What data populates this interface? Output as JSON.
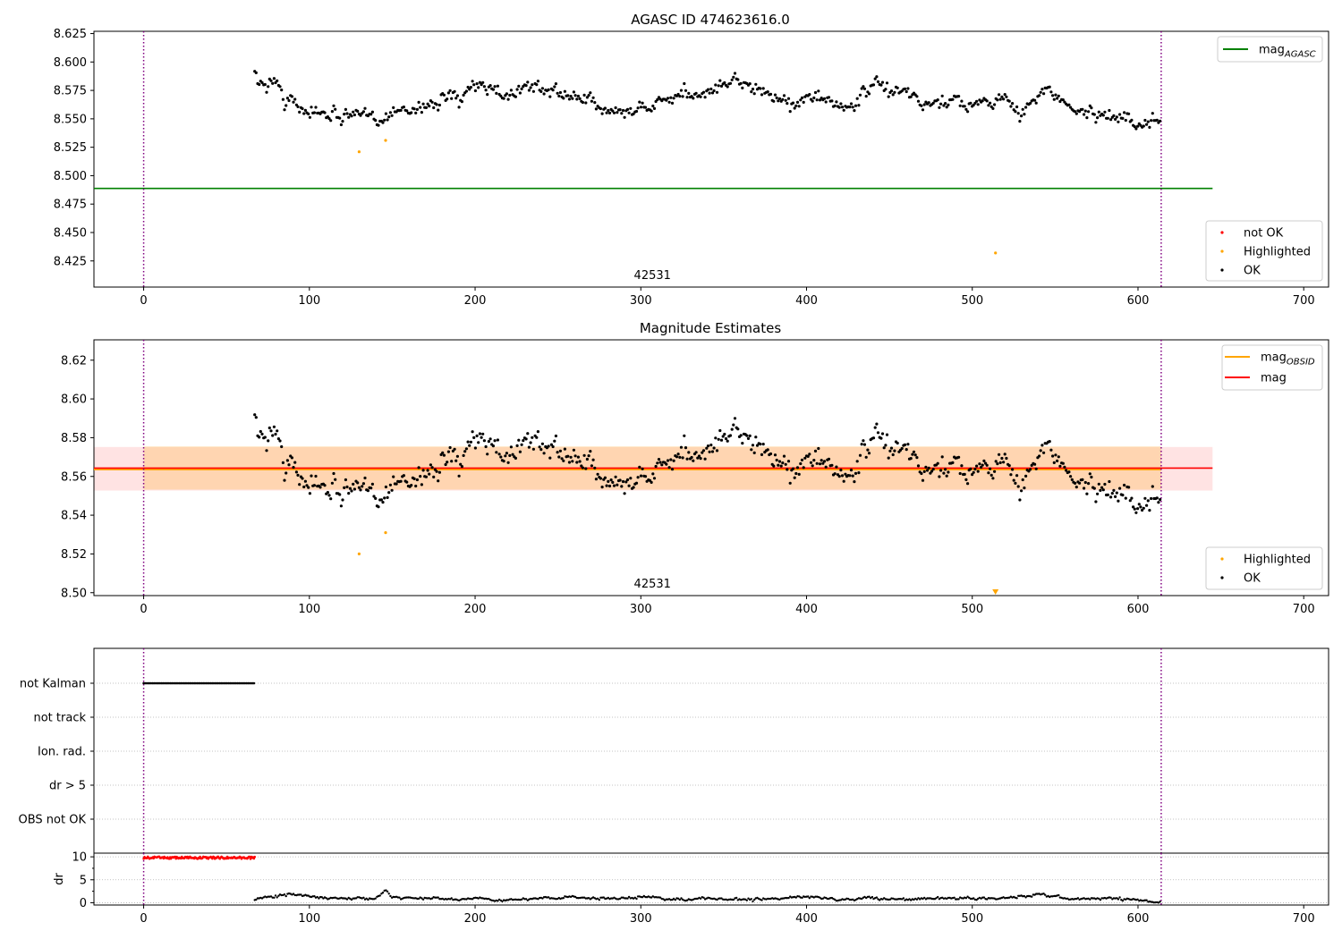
{
  "chart_data": [
    {
      "id": "agasc",
      "type": "scatter",
      "title": "AGASC ID 474623616.0",
      "xlabel": "",
      "ylabel": "",
      "xlim": [
        -30,
        715
      ],
      "ylim": [
        8.402,
        8.627
      ],
      "x_ticks": [
        0,
        100,
        200,
        300,
        400,
        500,
        600,
        700
      ],
      "y_ticks": [
        8.425,
        8.45,
        8.475,
        8.5,
        8.525,
        8.55,
        8.575,
        8.6,
        8.625
      ],
      "y_tick_labels": [
        "8.425",
        "8.450",
        "8.475",
        "8.500",
        "8.525",
        "8.550",
        "8.575",
        "8.600",
        "8.625"
      ],
      "grid": false,
      "vlines": [
        0,
        614
      ],
      "obsid_label": {
        "text": "42531",
        "x": 307,
        "y": 8.407
      },
      "hlines": [
        {
          "name": "mag",
          "subscript": "AGASC",
          "y": 8.4888,
          "x0": -30,
          "x1": 645,
          "color": "#008000"
        }
      ],
      "legend_lines": {
        "placement": "upper-right",
        "entries": [
          {
            "name": "mag",
            "subscript": "AGASC",
            "color": "#008000"
          }
        ]
      },
      "legend_points": {
        "placement": "lower-right",
        "entries": [
          {
            "name": "not OK",
            "color": "#ff0000"
          },
          {
            "name": "Highlighted",
            "color": "#ffa500"
          },
          {
            "name": "OK",
            "color": "#000000"
          }
        ]
      },
      "series": [
        {
          "name": "OK",
          "color": "#000000",
          "trend": [
            [
              67,
              8.594
            ],
            [
              70,
              8.578
            ],
            [
              75,
              8.582
            ],
            [
              80,
              8.586
            ],
            [
              85,
              8.565
            ],
            [
              90,
              8.566
            ],
            [
              95,
              8.56
            ],
            [
              100,
              8.557
            ],
            [
              110,
              8.553
            ],
            [
              120,
              8.553
            ],
            [
              130,
              8.552
            ],
            [
              140,
              8.549
            ],
            [
              150,
              8.554
            ],
            [
              160,
              8.558
            ],
            [
              170,
              8.562
            ],
            [
              180,
              8.568
            ],
            [
              190,
              8.566
            ],
            [
              200,
              8.576
            ],
            [
              210,
              8.579
            ],
            [
              220,
              8.571
            ],
            [
              230,
              8.578
            ],
            [
              240,
              8.576
            ],
            [
              250,
              8.575
            ],
            [
              260,
              8.569
            ],
            [
              270,
              8.563
            ],
            [
              280,
              8.558
            ],
            [
              290,
              8.557
            ],
            [
              300,
              8.561
            ],
            [
              310,
              8.562
            ],
            [
              320,
              8.57
            ],
            [
              330,
              8.572
            ],
            [
              340,
              8.571
            ],
            [
              350,
              8.58
            ],
            [
              360,
              8.583
            ],
            [
              370,
              8.577
            ],
            [
              380,
              8.568
            ],
            [
              390,
              8.562
            ],
            [
              400,
              8.572
            ],
            [
              410,
              8.565
            ],
            [
              420,
              8.558
            ],
            [
              430,
              8.563
            ],
            [
              440,
              8.582
            ],
            [
              450,
              8.574
            ],
            [
              460,
              8.575
            ],
            [
              470,
              8.561
            ],
            [
              480,
              8.562
            ],
            [
              490,
              8.566
            ],
            [
              500,
              8.565
            ],
            [
              510,
              8.566
            ],
            [
              520,
              8.567
            ],
            [
              530,
              8.556
            ],
            [
              540,
              8.571
            ],
            [
              550,
              8.573
            ],
            [
              560,
              8.558
            ],
            [
              570,
              8.556
            ],
            [
              580,
              8.553
            ],
            [
              590,
              8.55
            ],
            [
              600,
              8.547
            ],
            [
              614,
              8.549
            ]
          ],
          "noise": 0.0055,
          "step": 0.9
        },
        {
          "name": "Highlighted",
          "color": "#ffa500",
          "points": [
            [
              130,
              8.521
            ],
            [
              146,
              8.531
            ],
            [
              514,
              8.432
            ]
          ]
        }
      ]
    },
    {
      "id": "mag-estimates",
      "type": "scatter",
      "title": "Magnitude Estimates",
      "xlabel": "",
      "ylabel": "",
      "xlim": [
        -30,
        715
      ],
      "ylim": [
        8.4985,
        8.6305
      ],
      "x_ticks": [
        0,
        100,
        200,
        300,
        400,
        500,
        600,
        700
      ],
      "y_ticks": [
        8.5,
        8.52,
        8.54,
        8.56,
        8.58,
        8.6,
        8.62
      ],
      "y_tick_labels": [
        "8.50",
        "8.52",
        "8.54",
        "8.56",
        "8.58",
        "8.60",
        "8.62"
      ],
      "grid": false,
      "vlines": [
        0,
        614
      ],
      "obsid_label": {
        "text": "42531",
        "x": 307,
        "y": 8.5025
      },
      "bands": [
        {
          "y0": 8.5527,
          "y1": 8.5752,
          "x0": -30,
          "x1": 645,
          "color": "#ff0000",
          "opacity": 0.11
        },
        {
          "y0": 8.5532,
          "y1": 8.5755,
          "x0": 0,
          "x1": 614,
          "color": "#ffa500",
          "opacity": 0.22
        }
      ],
      "hlines": [
        {
          "name": "mag",
          "subscript": "OBSID",
          "y": 8.5637,
          "x0": -30,
          "x1": 614,
          "color": "#ffa500",
          "width": 2.2
        },
        {
          "name": "mag",
          "subscript": "",
          "y": 8.5643,
          "x0": -30,
          "x1": 645,
          "color": "#ff0000",
          "width": 1.6
        }
      ],
      "legend_lines": {
        "placement": "upper-right",
        "entries": [
          {
            "name": "mag",
            "subscript": "OBSID",
            "color": "#ffa500"
          },
          {
            "name": "mag",
            "subscript": "",
            "color": "#ff0000"
          }
        ]
      },
      "legend_points": {
        "placement": "lower-right",
        "entries": [
          {
            "name": "Highlighted",
            "color": "#ffa500"
          },
          {
            "name": "OK",
            "color": "#000000"
          }
        ]
      },
      "series": [
        {
          "name": "OK",
          "color": "#000000",
          "same_as": "agasc"
        },
        {
          "name": "Highlighted",
          "color": "#ffa500",
          "points": [
            [
              130,
              8.52
            ],
            [
              146,
              8.531
            ]
          ],
          "offscale": [
            [
              514,
              8.5
            ]
          ]
        }
      ]
    },
    {
      "id": "flags",
      "type": "scatter",
      "xlim": [
        -30,
        715
      ],
      "categories": [
        "not Kalman",
        "not track",
        "Ion. rad.",
        "dr > 5",
        "OBS not OK"
      ],
      "grid": "dotted-horizontal",
      "vlines": [
        0,
        614
      ],
      "series": [
        {
          "name": "not Kalman",
          "color": "#000000",
          "x_range": [
            0,
            67
          ],
          "step": 0.9
        }
      ]
    },
    {
      "id": "dr",
      "type": "scatter",
      "ylabel": "dr",
      "xlim": [
        -30,
        715
      ],
      "ylim": [
        -0.5,
        10.8
      ],
      "x_ticks": [
        0,
        100,
        200,
        300,
        400,
        500,
        600,
        700
      ],
      "y_ticks": [
        0,
        5,
        10
      ],
      "y_tick_labels": [
        "0",
        "5",
        "10"
      ],
      "grid": "dotted-horizontal",
      "vlines": [
        0,
        614
      ],
      "series": [
        {
          "name": "dr > 5",
          "color": "#ff0000",
          "x_range": [
            0,
            67
          ],
          "value": 9.8,
          "step": 0.5
        },
        {
          "name": "dr",
          "color": "#000000",
          "trend": [
            [
              67,
              0.8
            ],
            [
              80,
              1.5
            ],
            [
              90,
              1.9
            ],
            [
              100,
              1.3
            ],
            [
              120,
              0.9
            ],
            [
              140,
              0.9
            ],
            [
              146,
              2.9
            ],
            [
              150,
              1.2
            ],
            [
              170,
              1.0
            ],
            [
              190,
              0.8
            ],
            [
              200,
              1.1
            ],
            [
              210,
              0.5
            ],
            [
              230,
              0.8
            ],
            [
              260,
              1.2
            ],
            [
              280,
              0.8
            ],
            [
              300,
              1.4
            ],
            [
              320,
              0.7
            ],
            [
              340,
              0.9
            ],
            [
              360,
              0.6
            ],
            [
              380,
              0.8
            ],
            [
              400,
              1.4
            ],
            [
              420,
              0.6
            ],
            [
              440,
              1.1
            ],
            [
              460,
              0.7
            ],
            [
              480,
              0.9
            ],
            [
              500,
              1.0
            ],
            [
              520,
              1.0
            ],
            [
              540,
              1.7
            ],
            [
              560,
              0.8
            ],
            [
              580,
              1.0
            ],
            [
              600,
              0.6
            ],
            [
              614,
              0.1
            ]
          ],
          "noise": 0.25,
          "step": 0.9
        }
      ]
    }
  ]
}
